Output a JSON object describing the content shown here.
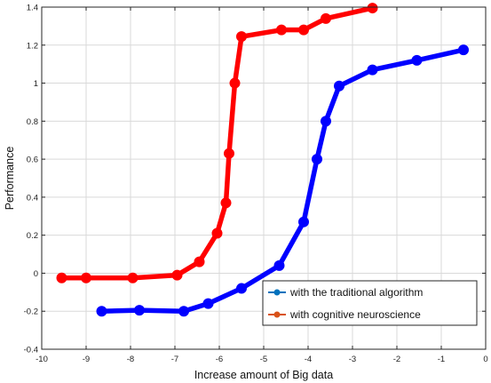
{
  "chart_data": {
    "type": "line",
    "xlabel": "Increase amount of Big data",
    "ylabel": "Performance",
    "xlim": [
      -10,
      0
    ],
    "ylim": [
      -0.4,
      1.4
    ],
    "xticks": [
      -10,
      -9,
      -8,
      -7,
      -6,
      -5,
      -4,
      -3,
      -2,
      -1,
      0
    ],
    "xtick_labels": [
      "-10",
      "-9",
      "-8",
      "-7",
      "-6",
      "-5",
      "-4",
      "-3",
      "-2",
      "-1",
      "0"
    ],
    "yticks": [
      -0.4,
      -0.2,
      0,
      0.2,
      0.4,
      0.6,
      0.8,
      1,
      1.2,
      1.4
    ],
    "ytick_labels": [
      "-0.4",
      "-0.2",
      "0",
      "0.2",
      "0.4",
      "0.6",
      "0.8",
      "1",
      "1.2",
      "1.4"
    ],
    "grid": true,
    "legend_position": "bottom-right",
    "series": [
      {
        "name": "with the traditional algorithm",
        "color": "#0000ff",
        "legend_color": "#0072bd",
        "x": [
          -8.65,
          -7.8,
          -6.8,
          -6.25,
          -5.5,
          -4.65,
          -4.1,
          -3.8,
          -3.6,
          -3.3,
          -2.55,
          -1.55,
          -0.5
        ],
        "y": [
          -0.2,
          -0.195,
          -0.2,
          -0.16,
          -0.08,
          0.04,
          0.27,
          0.6,
          0.8,
          0.985,
          1.07,
          1.12,
          1.175
        ]
      },
      {
        "name": "with cognitive neuroscience",
        "color": "#ff0000",
        "legend_color": "#d95319",
        "x": [
          -9.55,
          -9.0,
          -7.95,
          -6.95,
          -6.45,
          -6.05,
          -5.85,
          -5.78,
          -5.65,
          -5.5,
          -4.6,
          -4.1,
          -3.6,
          -2.55
        ],
        "y": [
          -0.025,
          -0.025,
          -0.025,
          -0.01,
          0.06,
          0.21,
          0.37,
          0.63,
          1.0,
          1.245,
          1.28,
          1.28,
          1.34,
          1.395
        ]
      }
    ]
  }
}
